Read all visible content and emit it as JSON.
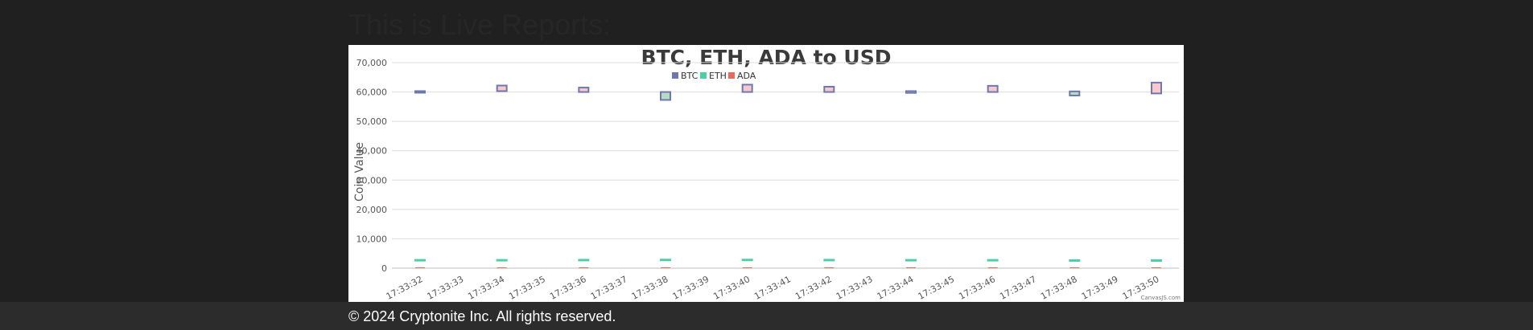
{
  "page": {
    "heading": "This is Live Reports:",
    "footer": "© 2024 Cryptonite Inc. All rights reserved."
  },
  "chart_data": {
    "type": "ohlc-candlestick",
    "title": "BTC, ETH, ADA to USD",
    "ylabel": "Coin Value",
    "xlabel": "",
    "ylim": [
      0,
      70000
    ],
    "y_ticks": [
      0,
      10000,
      20000,
      30000,
      40000,
      50000,
      60000,
      70000
    ],
    "y_tick_labels": [
      "0",
      "10,000",
      "20,000",
      "30,000",
      "40,000",
      "50,000",
      "60,000",
      "70,000"
    ],
    "x_tick_labels": [
      "17:33:32",
      "17:33:33",
      "17:33:34",
      "17:33:35",
      "17:33:36",
      "17:33:37",
      "17:33:38",
      "17:33:39",
      "17:33:40",
      "17:33:41",
      "17:33:42",
      "17:33:43",
      "17:33:44",
      "17:33:45",
      "17:33:46",
      "17:33:47",
      "17:33:48",
      "17:33:49",
      "17:33:50"
    ],
    "grid": true,
    "legend_position": "top-center",
    "credit": "CanvasJS.com",
    "series": [
      {
        "name": "BTC",
        "color": "#6d78ad",
        "rising_fill": "#f8c8cd",
        "falling_fill": "#b7dcc1",
        "points": [
          {
            "x": "17:33:32",
            "open": 60300,
            "close": 59800,
            "high": 60300,
            "low": 59800
          },
          {
            "x": "17:33:34",
            "open": 60300,
            "close": 62200,
            "high": 62400,
            "low": 60300
          },
          {
            "x": "17:33:36",
            "open": 60000,
            "close": 61500,
            "high": 61500,
            "low": 60000
          },
          {
            "x": "17:33:38",
            "open": 60000,
            "close": 57300,
            "high": 60000,
            "low": 57300
          },
          {
            "x": "17:33:40",
            "open": 60000,
            "close": 62500,
            "high": 62500,
            "low": 60000
          },
          {
            "x": "17:33:42",
            "open": 60000,
            "close": 61800,
            "high": 61800,
            "low": 60000
          },
          {
            "x": "17:33:44",
            "open": 60300,
            "close": 59700,
            "high": 60300,
            "low": 59700
          },
          {
            "x": "17:33:46",
            "open": 60000,
            "close": 62100,
            "high": 62300,
            "low": 60000
          },
          {
            "x": "17:33:48",
            "open": 60200,
            "close": 58800,
            "high": 60200,
            "low": 58800
          },
          {
            "x": "17:33:50",
            "open": 59500,
            "close": 63200,
            "high": 63300,
            "low": 59500
          }
        ]
      },
      {
        "name": "ETH",
        "color": "#4ed0a3",
        "points": [
          {
            "x": "17:33:32",
            "open": 2700,
            "close": 2700,
            "high": 2700,
            "low": 2700
          },
          {
            "x": "17:33:34",
            "open": 2700,
            "close": 2700,
            "high": 2700,
            "low": 2700
          },
          {
            "x": "17:33:36",
            "open": 2750,
            "close": 2750,
            "high": 2750,
            "low": 2750
          },
          {
            "x": "17:33:38",
            "open": 2800,
            "close": 2800,
            "high": 2800,
            "low": 2800
          },
          {
            "x": "17:33:40",
            "open": 2800,
            "close": 2800,
            "high": 2800,
            "low": 2800
          },
          {
            "x": "17:33:42",
            "open": 2750,
            "close": 2750,
            "high": 2750,
            "low": 2750
          },
          {
            "x": "17:33:44",
            "open": 2700,
            "close": 2700,
            "high": 2700,
            "low": 2700
          },
          {
            "x": "17:33:46",
            "open": 2700,
            "close": 2700,
            "high": 2700,
            "low": 2700
          },
          {
            "x": "17:33:48",
            "open": 2600,
            "close": 2600,
            "high": 2600,
            "low": 2600
          },
          {
            "x": "17:33:50",
            "open": 2600,
            "close": 2600,
            "high": 2600,
            "low": 2600
          }
        ]
      },
      {
        "name": "ADA",
        "color": "#e66a5b",
        "points": [
          {
            "x": "17:33:32",
            "open": 0.4,
            "close": 0.4,
            "high": 0.4,
            "low": 0.4
          },
          {
            "x": "17:33:34",
            "open": 0.4,
            "close": 0.4,
            "high": 0.4,
            "low": 0.4
          },
          {
            "x": "17:33:36",
            "open": 0.4,
            "close": 0.4,
            "high": 0.4,
            "low": 0.4
          },
          {
            "x": "17:33:38",
            "open": 0.4,
            "close": 0.4,
            "high": 0.4,
            "low": 0.4
          },
          {
            "x": "17:33:40",
            "open": 0.4,
            "close": 0.4,
            "high": 0.4,
            "low": 0.4
          },
          {
            "x": "17:33:42",
            "open": 0.4,
            "close": 0.4,
            "high": 0.4,
            "low": 0.4
          },
          {
            "x": "17:33:44",
            "open": 0.4,
            "close": 0.4,
            "high": 0.4,
            "low": 0.4
          },
          {
            "x": "17:33:46",
            "open": 0.4,
            "close": 0.4,
            "high": 0.4,
            "low": 0.4
          },
          {
            "x": "17:33:48",
            "open": 0.4,
            "close": 0.4,
            "high": 0.4,
            "low": 0.4
          },
          {
            "x": "17:33:50",
            "open": 0.4,
            "close": 0.4,
            "high": 0.4,
            "low": 0.4
          }
        ]
      }
    ]
  }
}
